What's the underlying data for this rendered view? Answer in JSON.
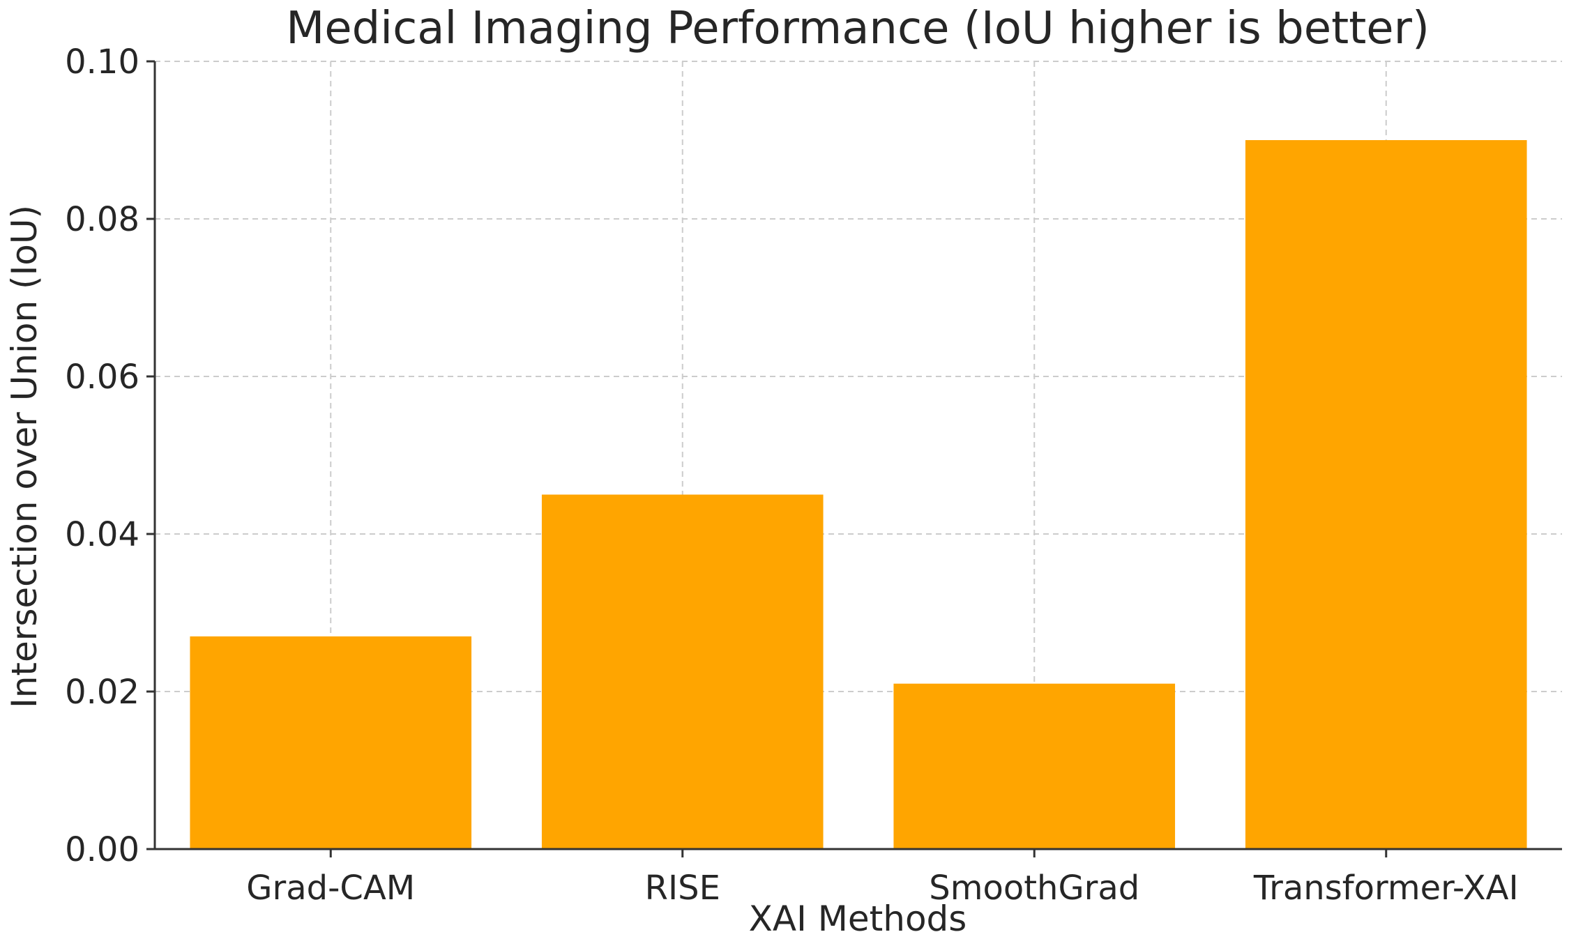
{
  "chart_data": {
    "type": "bar",
    "title": "Medical Imaging Performance (IoU higher is better)",
    "xlabel": "XAI Methods",
    "ylabel": "Intersection over Union (IoU)",
    "categories": [
      "Grad-CAM",
      "RISE",
      "SmoothGrad",
      "Transformer-XAI"
    ],
    "values": [
      0.027,
      0.045,
      0.021,
      0.09
    ],
    "ylim": [
      0,
      0.1
    ],
    "yticks": [
      "0.00",
      "0.02",
      "0.04",
      "0.06",
      "0.08",
      "0.10"
    ],
    "grid": true,
    "bar_color": "#FFA500"
  }
}
